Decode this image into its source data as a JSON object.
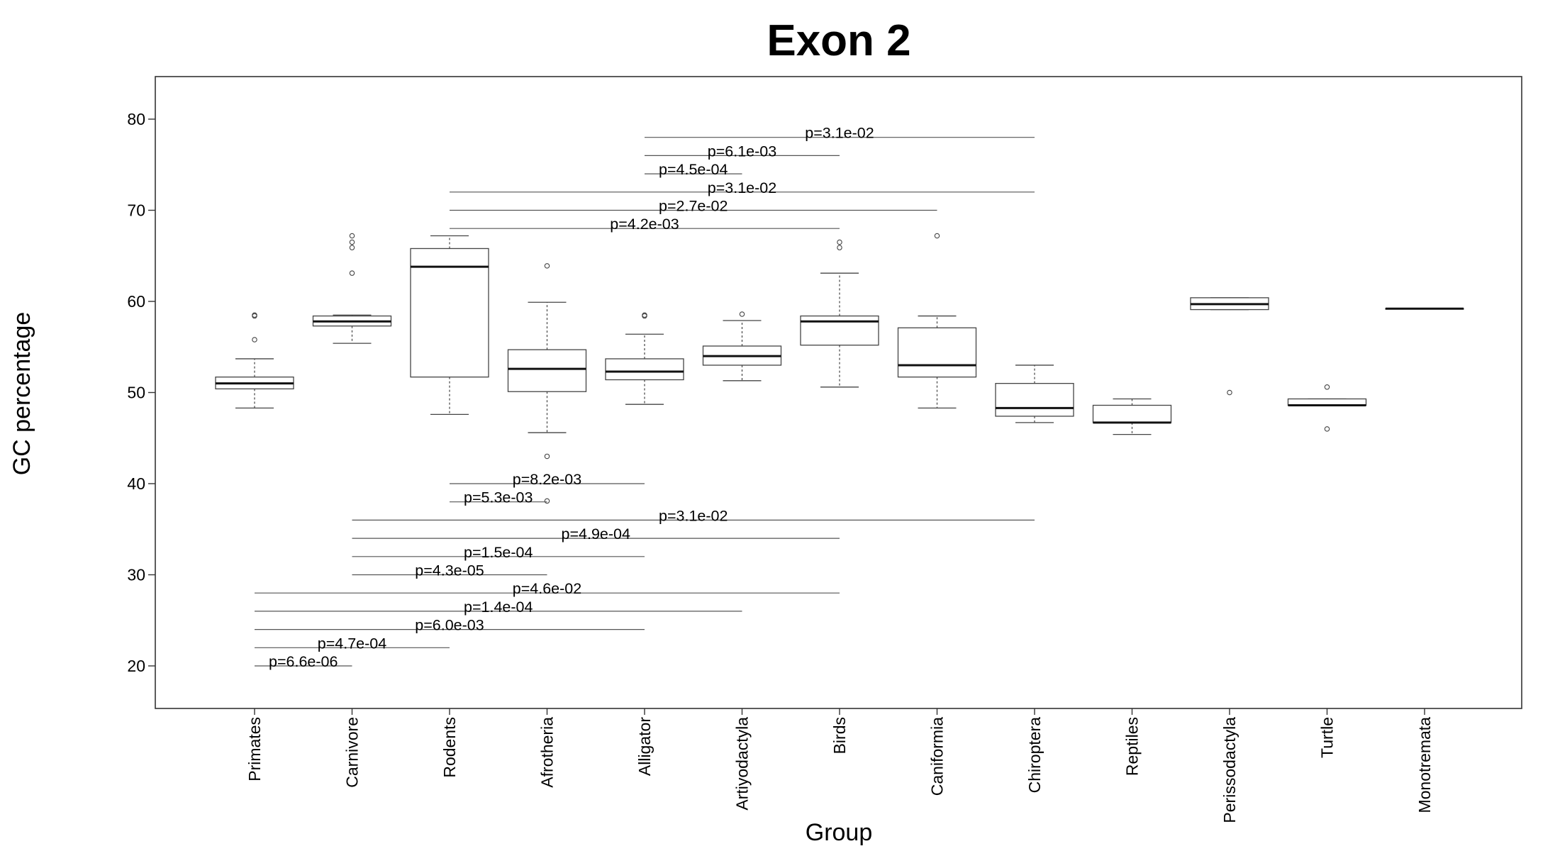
{
  "chart_data": {
    "type": "box",
    "title": "Exon 2",
    "xlabel": "Group",
    "ylabel": "GC percentage",
    "ylim": [
      15.5,
      84.5
    ],
    "yticks": [
      20,
      30,
      40,
      50,
      60,
      70,
      80
    ],
    "grid": false,
    "categories": [
      "Primates",
      "Carnivore",
      "Rodents",
      "Afrotheria",
      "Alligator",
      "Artiyodactyla",
      "Birds",
      "Caniformia",
      "Chiroptera",
      "Reptiles",
      "Perissodactyla",
      "Turtle",
      "Monotremata"
    ],
    "boxes": [
      {
        "group": "Primates",
        "whisker_low": 48.3,
        "q1": 50.4,
        "median": 51.0,
        "q3": 51.7,
        "whisker_high": 53.7,
        "outliers": [
          55.8,
          58.4,
          58.5
        ]
      },
      {
        "group": "Carnivore",
        "whisker_low": 55.4,
        "q1": 57.3,
        "median": 57.8,
        "q3": 58.4,
        "whisker_high": 58.5,
        "outliers": [
          63.1,
          65.9,
          66.5,
          67.2
        ]
      },
      {
        "group": "Rodents",
        "whisker_low": 47.6,
        "q1": 51.7,
        "median": 63.8,
        "q3": 65.8,
        "whisker_high": 67.2,
        "outliers": []
      },
      {
        "group": "Afrotheria",
        "whisker_low": 45.6,
        "q1": 50.1,
        "median": 52.6,
        "q3": 54.7,
        "whisker_high": 59.9,
        "outliers": [
          38.1,
          43.0,
          63.9
        ]
      },
      {
        "group": "Alligator",
        "whisker_low": 48.7,
        "q1": 51.4,
        "median": 52.3,
        "q3": 53.7,
        "whisker_high": 56.4,
        "outliers": [
          58.4,
          58.5
        ]
      },
      {
        "group": "Artiyodactyla",
        "whisker_low": 51.3,
        "q1": 53.0,
        "median": 54.0,
        "q3": 55.1,
        "whisker_high": 57.9,
        "outliers": [
          58.6
        ]
      },
      {
        "group": "Birds",
        "whisker_low": 50.6,
        "q1": 55.2,
        "median": 57.8,
        "q3": 58.4,
        "whisker_high": 63.1,
        "outliers": [
          65.9,
          66.5
        ]
      },
      {
        "group": "Caniformia",
        "whisker_low": 48.3,
        "q1": 51.7,
        "median": 53.0,
        "q3": 57.1,
        "whisker_high": 58.4,
        "outliers": [
          67.2
        ]
      },
      {
        "group": "Chiroptera",
        "whisker_low": 46.7,
        "q1": 47.4,
        "median": 48.3,
        "q3": 51.0,
        "whisker_high": 53.0,
        "outliers": []
      },
      {
        "group": "Reptiles",
        "whisker_low": 45.4,
        "q1": 46.7,
        "median": 46.7,
        "q3": 48.6,
        "whisker_high": 49.3,
        "outliers": []
      },
      {
        "group": "Perissodactyla",
        "whisker_low": 59.1,
        "q1": 59.1,
        "median": 59.7,
        "q3": 60.4,
        "whisker_high": 60.4,
        "outliers": [
          50.0
        ]
      },
      {
        "group": "Turtle",
        "whisker_low": 48.6,
        "q1": 48.6,
        "median": 48.6,
        "q3": 49.3,
        "whisker_high": 49.3,
        "outliers": [
          46.0,
          50.6
        ]
      },
      {
        "group": "Monotremata",
        "whisker_low": 59.2,
        "q1": 59.2,
        "median": 59.2,
        "q3": 59.2,
        "whisker_high": 59.2,
        "outliers": []
      }
    ],
    "comparisons": [
      {
        "from": "Alligator",
        "to": "Chiroptera",
        "y": 78,
        "label": "p=3.1e-02"
      },
      {
        "from": "Alligator",
        "to": "Birds",
        "y": 76,
        "label": "p=6.1e-03"
      },
      {
        "from": "Alligator",
        "to": "Artiyodactyla",
        "y": 74,
        "label": "p=4.5e-04"
      },
      {
        "from": "Rodents",
        "to": "Chiroptera",
        "y": 72,
        "label": "p=3.1e-02"
      },
      {
        "from": "Rodents",
        "to": "Caniformia",
        "y": 70,
        "label": "p=2.7e-02"
      },
      {
        "from": "Rodents",
        "to": "Birds",
        "y": 68,
        "label": "p=4.2e-03"
      },
      {
        "from": "Rodents",
        "to": "Alligator",
        "y": 40,
        "label": "p=8.2e-03"
      },
      {
        "from": "Rodents",
        "to": "Afrotheria",
        "y": 38,
        "label": "p=5.3e-03"
      },
      {
        "from": "Carnivore",
        "to": "Chiroptera",
        "y": 36,
        "label": "p=3.1e-02"
      },
      {
        "from": "Carnivore",
        "to": "Birds",
        "y": 34,
        "label": "p=4.9e-04"
      },
      {
        "from": "Carnivore",
        "to": "Alligator",
        "y": 32,
        "label": "p=1.5e-04"
      },
      {
        "from": "Carnivore",
        "to": "Afrotheria",
        "y": 30,
        "label": "p=4.3e-05"
      },
      {
        "from": "Primates",
        "to": "Birds",
        "y": 28,
        "label": "p=4.6e-02"
      },
      {
        "from": "Primates",
        "to": "Artiyodactyla",
        "y": 26,
        "label": "p=1.4e-04"
      },
      {
        "from": "Primates",
        "to": "Alligator",
        "y": 24,
        "label": "p=6.0e-03"
      },
      {
        "from": "Primates",
        "to": "Rodents",
        "y": 22,
        "label": "p=4.7e-04"
      },
      {
        "from": "Primates",
        "to": "Carnivore",
        "y": 20,
        "label": "p=6.6e-06"
      }
    ]
  }
}
